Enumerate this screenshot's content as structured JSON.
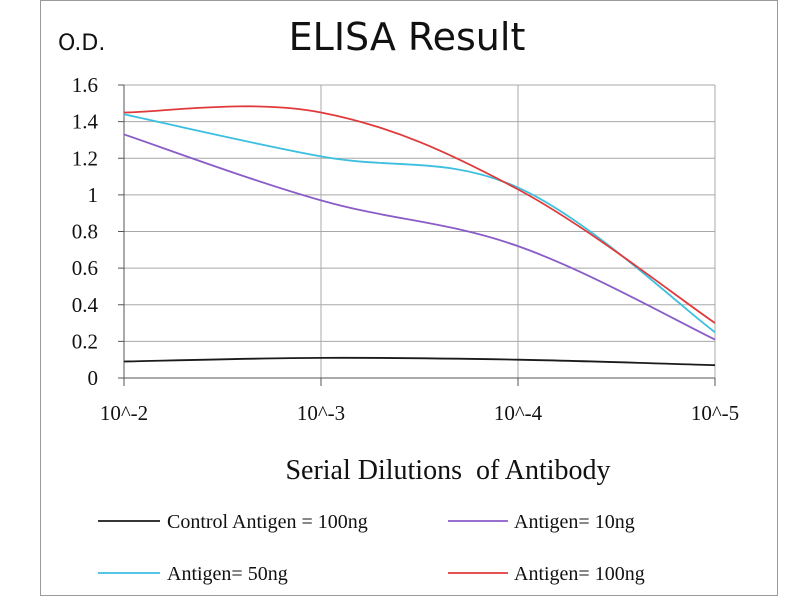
{
  "chart_data": {
    "type": "line",
    "title": "ELISA Result",
    "ylabel": "O.D.",
    "xlabel": "Serial Dilutions  of Antibody",
    "categories": [
      "10^-2",
      "10^-3",
      "10^-4",
      "10^-5"
    ],
    "ylim": [
      0,
      1.6
    ],
    "yticks": [
      "0",
      "0.2",
      "0.4",
      "0.6",
      "0.8",
      "1",
      "1.2",
      "1.4",
      "1.6"
    ],
    "grid": true,
    "legend_position": "bottom",
    "series": [
      {
        "name": "Control Antigen = 100ng",
        "color": "#1a1a1a",
        "values": [
          0.09,
          0.11,
          0.1,
          0.07
        ]
      },
      {
        "name": "Antigen= 10ng",
        "color": "#8a5cc8",
        "values": [
          1.33,
          0.97,
          0.72,
          0.21
        ]
      },
      {
        "name": "Antigen= 50ng",
        "color": "#3cbfe0",
        "values": [
          1.44,
          1.21,
          1.04,
          0.25
        ]
      },
      {
        "name": "Antigen= 100ng",
        "color": "#e03a3a",
        "values": [
          1.45,
          1.45,
          1.03,
          0.3
        ]
      }
    ]
  }
}
